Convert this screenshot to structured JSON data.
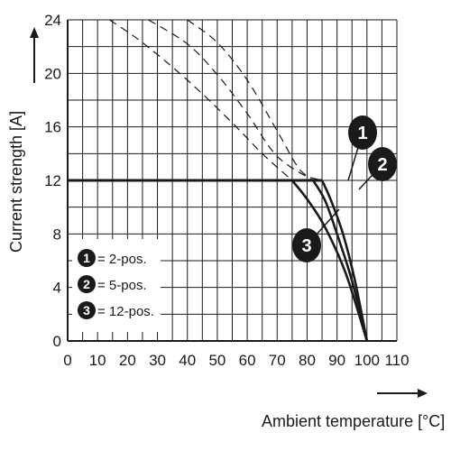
{
  "chart_data": {
    "type": "line",
    "xlabel": "Ambient temperature [°C]",
    "ylabel": "Current strength [A]",
    "xlim": [
      0,
      110
    ],
    "ylim": [
      0,
      24
    ],
    "x_ticks": [
      "0",
      "10",
      "20",
      "30",
      "40",
      "50",
      "60",
      "70",
      "80",
      "90",
      "100",
      "110"
    ],
    "y_ticks": [
      "0",
      "4",
      "8",
      "12",
      "16",
      "20",
      "24"
    ],
    "grid": true,
    "legend_position": "bottom-left",
    "series": [
      {
        "name": "2-pos.",
        "badge": "1",
        "color": "#1a1a1a",
        "points": [
          [
            0,
            12
          ],
          [
            85,
            12
          ],
          [
            88,
            10.5
          ],
          [
            92,
            8.0
          ],
          [
            96,
            4.5
          ],
          [
            100,
            0
          ]
        ],
        "dashed_points": [
          [
            40,
            24
          ],
          [
            50,
            22.3
          ],
          [
            60,
            19.5
          ],
          [
            70,
            15.7
          ],
          [
            78,
            12.7
          ],
          [
            85,
            12
          ]
        ]
      },
      {
        "name": "5-pos.",
        "badge": "2",
        "color": "#1a1a1a",
        "points": [
          [
            0,
            12
          ],
          [
            82,
            12
          ],
          [
            86,
            10.5
          ],
          [
            90,
            8.0
          ],
          [
            95,
            4.5
          ],
          [
            100,
            0
          ]
        ],
        "dashed_points": [
          [
            27,
            24
          ],
          [
            40,
            22.2
          ],
          [
            50,
            19.9
          ],
          [
            60,
            17.0
          ],
          [
            70,
            13.8
          ],
          [
            82,
            12
          ]
        ]
      },
      {
        "name": "12-pos.",
        "badge": "3",
        "color": "#1a1a1a",
        "points": [
          [
            0,
            12
          ],
          [
            75,
            12
          ],
          [
            80,
            10.6
          ],
          [
            86,
            8.5
          ],
          [
            93,
            5.0
          ],
          [
            100,
            0
          ]
        ],
        "dashed_points": [
          [
            14,
            24
          ],
          [
            25,
            22.3
          ],
          [
            40,
            19.5
          ],
          [
            55,
            16.3
          ],
          [
            65,
            14.0
          ],
          [
            75,
            12
          ]
        ]
      }
    ],
    "legend": [
      {
        "badge": "1",
        "label": "= 2-pos."
      },
      {
        "badge": "2",
        "label": "= 5-pos."
      },
      {
        "badge": "3",
        "label": "= 12-pos."
      }
    ]
  }
}
